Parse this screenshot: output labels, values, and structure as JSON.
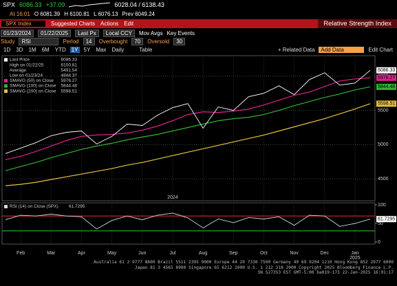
{
  "header": {
    "ticker": "SPX",
    "last": "6086.33",
    "change": "+37.09",
    "range": "6028.04 / 6138.43",
    "time": "At 16:01",
    "open": "O 6081.39",
    "high": "H 6100.81",
    "low": "L 6076.13",
    "prev": "Prev 6049.24"
  },
  "toolbar": {
    "security": "SPX Index",
    "menu": [
      "Suggested Charts",
      "Actions",
      "Edit"
    ],
    "panel_title": "Relative Strength Index"
  },
  "settings": {
    "start": "01/23/2024",
    "end": "01/22/2025",
    "price": "Last Px",
    "currency": "Local CCY",
    "mov_avgs": "Mov Avgs",
    "key_events": "Key Events",
    "study_label": "Study",
    "study": "RSI",
    "period_label": "Period",
    "period": 14,
    "overbought_label": "Overbought",
    "overbought": 70,
    "oversold_label": "Oversold",
    "oversold": 30
  },
  "range_buttons": [
    "1D",
    "3D",
    "1M",
    "6M",
    "YTD",
    "1Y",
    "5Y",
    "Max"
  ],
  "frequency": "Daily",
  "table": "Table",
  "related": "+ Related Data",
  "add_data": "Add Data",
  "edit_chart": "Edit Chart",
  "chart_data": [
    {
      "type": "line",
      "ylim": [
        4200,
        6290
      ],
      "yticks": [
        4500,
        5000,
        5500,
        6000
      ],
      "grid": true,
      "stats": [
        {
          "label": "High on 01/22/25",
          "value": 6100.81
        },
        {
          "label": "Average",
          "value": 5491.54
        },
        {
          "label": "Low on 01/23/24",
          "value": 4844.37
        }
      ],
      "series": [
        {
          "name": "Last Price",
          "color": "#ffffff",
          "values": [
            4870,
            4950,
            5030,
            5130,
            5180,
            5200,
            5010,
            5120,
            5300,
            5280,
            5430,
            5540,
            5600,
            5240,
            5550,
            5500,
            5700,
            5750,
            5860,
            5730,
            5950,
            6050,
            5870,
            5900,
            6086.33
          ]
        },
        {
          "name": "SMAVG (50) on Close",
          "color": "#e0218a",
          "values": [
            4780,
            4830,
            4900,
            4980,
            5060,
            5120,
            5140,
            5150,
            5170,
            5210,
            5270,
            5350,
            5440,
            5480,
            5470,
            5490,
            5520,
            5580,
            5650,
            5720,
            5770,
            5850,
            5930,
            5960,
            5976.27
          ]
        },
        {
          "name": "SMAVG (100) on Close",
          "color": "#2fb52f",
          "values": [
            4620,
            4680,
            4740,
            4810,
            4870,
            4930,
            4980,
            5020,
            5070,
            5110,
            5150,
            5200,
            5250,
            5300,
            5350,
            5380,
            5400,
            5440,
            5500,
            5570,
            5630,
            5690,
            5740,
            5800,
            5844.48
          ]
        },
        {
          "name": "SMAVG (200) on Close",
          "color": "#e8c23a",
          "values": [
            4400,
            4420,
            4450,
            4490,
            4530,
            4570,
            4610,
            4650,
            4700,
            4740,
            4790,
            4840,
            4890,
            4940,
            4990,
            5040,
            5090,
            5140,
            5200,
            5260,
            5320,
            5380,
            5450,
            5520,
            5598.51
          ]
        }
      ]
    },
    {
      "type": "line",
      "title": "RSI (14) on Close (SPX)",
      "categories": [
        null,
        "Feb",
        null,
        "Mar",
        null,
        "Apr",
        null,
        "May",
        null,
        "Jun",
        null,
        "Jul",
        null,
        "Aug",
        null,
        "Sep",
        null,
        "Oct",
        null,
        "Nov",
        null,
        "Dec",
        null,
        "Jan",
        null
      ],
      "year_labels": [
        "2024",
        "2025"
      ],
      "ylim": [
        0,
        100
      ],
      "yticks": [
        0,
        50,
        100
      ],
      "series": [
        {
          "name": "RSI",
          "color": "#d8d8d8",
          "values": [
            60,
            72,
            70,
            75,
            70,
            68,
            35,
            58,
            70,
            60,
            72,
            78,
            65,
            38,
            62,
            52,
            66,
            62,
            68,
            45,
            72,
            70,
            42,
            50,
            61.7295
          ]
        }
      ]
    }
  ],
  "footer": [
    "Australia 61 2 9777 8600 Brazil 5511 2395 9000 Europe 44 20 7330 7500 Germany 49 69 9204 1210 Hong Kong 852 2977 6000",
    "Japan 81 3 4565 8900       Singapore 65 6212 1000       U.S. 1 212 318 2000       Copyright 2025 Bloomberg Finance L.P.",
    "SN 527353 EST  GMT-5:00 ba019-173 22-Jan-2025 16:01:17"
  ]
}
